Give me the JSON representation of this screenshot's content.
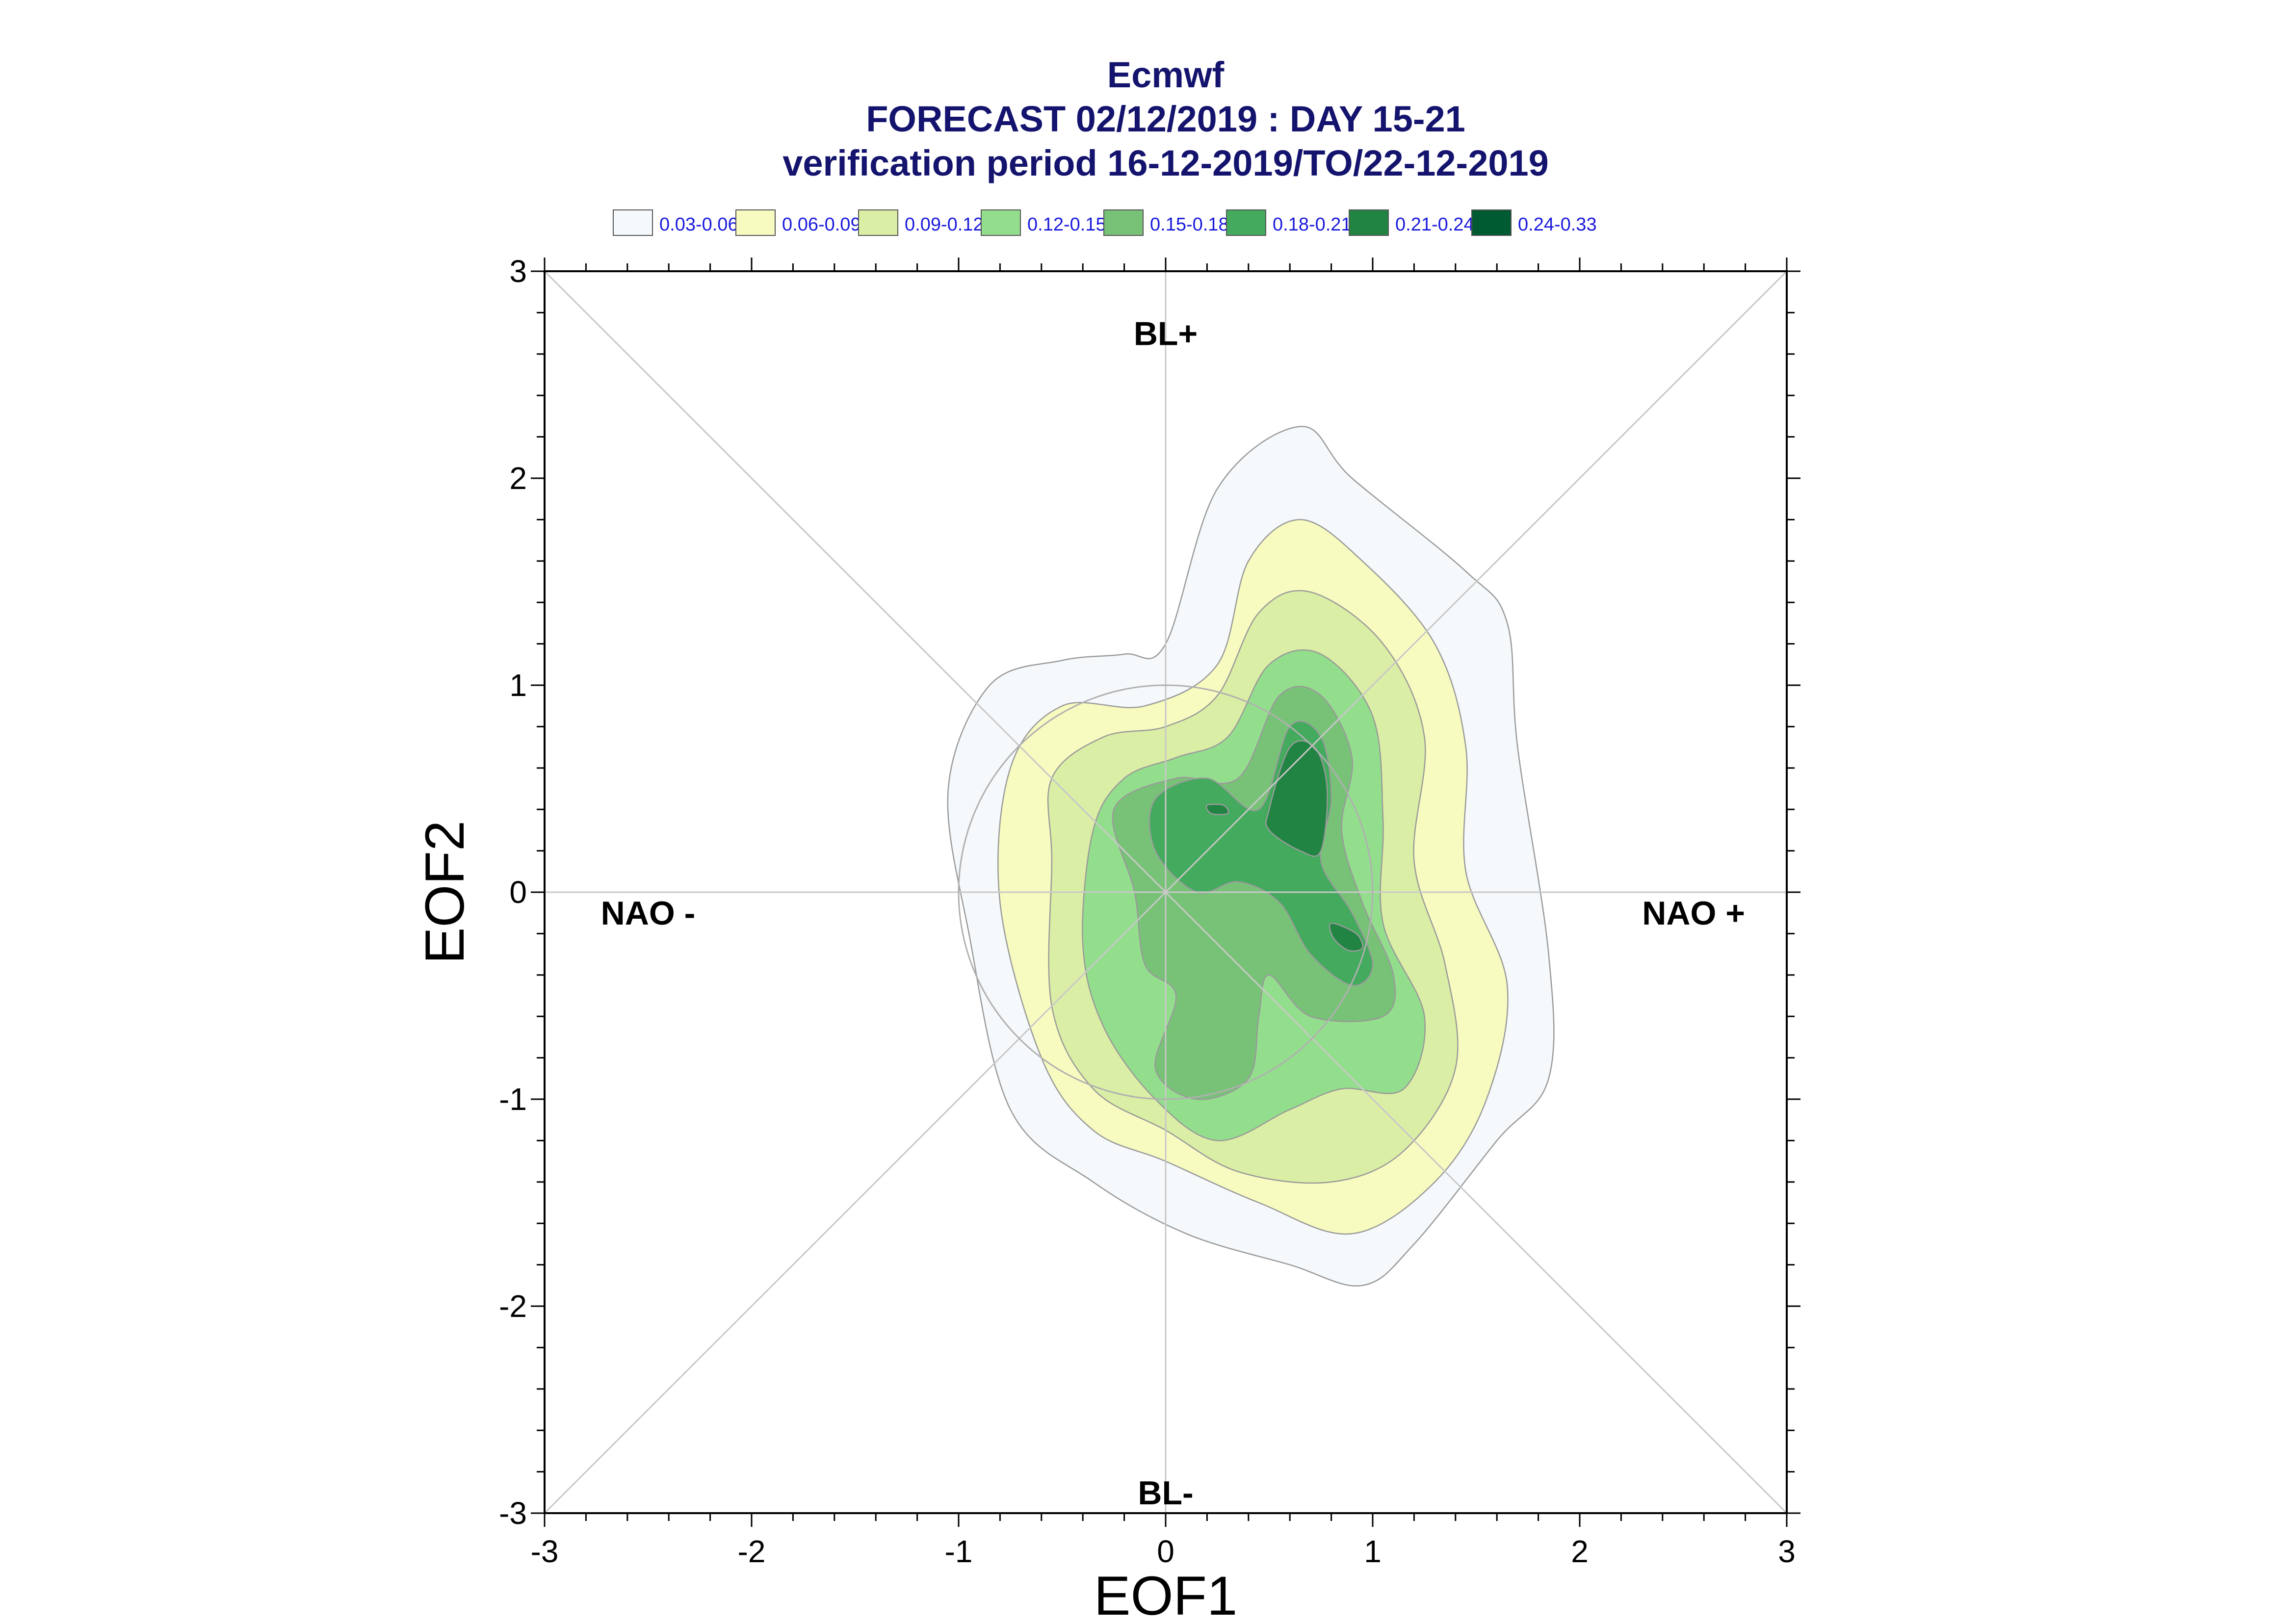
{
  "chart_data": {
    "type": "contour",
    "title_lines": [
      "Ecmwf",
      "FORECAST 02/12/2019 : DAY 15-21",
      "verification period 16-12-2019/TO/22-12-2019"
    ],
    "xlabel": "EOF1",
    "ylabel": "EOF2",
    "xlim": [
      -3,
      3
    ],
    "ylim": [
      -3,
      3
    ],
    "x_ticks": [
      "-3",
      "-2",
      "-1",
      "0",
      "1",
      "2",
      "3"
    ],
    "y_ticks": [
      "3",
      "2",
      "1",
      "0",
      "-1",
      "-2",
      "-3"
    ],
    "grid": false,
    "reference_lines": [
      "x=0",
      "y=0",
      "y=x",
      "y=-x",
      "circle r=1"
    ],
    "regime_labels": [
      {
        "text": "BL+",
        "x": 0,
        "y": 2.7
      },
      {
        "text": "BL-",
        "x": 0,
        "y": -2.9
      },
      {
        "text": "NAO -",
        "x": -2.5,
        "y": -0.1
      },
      {
        "text": "NAO +",
        "x": 2.55,
        "y": -0.1
      }
    ],
    "legend": {
      "placement": "top",
      "items": [
        {
          "label": "0.03-0.06",
          "color": "#f5f9fc"
        },
        {
          "label": "0.06-0.09",
          "color": "#f7fbbf"
        },
        {
          "label": "0.09-0.12",
          "color": "#dbeea5"
        },
        {
          "label": "0.12-0.15",
          "color": "#93de8d"
        },
        {
          "label": "0.15-0.18",
          "color": "#78c278"
        },
        {
          "label": "0.18-0.21",
          "color": "#43aa5e"
        },
        {
          "label": "0.21-0.24",
          "color": "#218443"
        },
        {
          "label": "0.24-0.33",
          "color": "#005a32"
        }
      ]
    },
    "contours": [
      {
        "level": "0.03-0.06",
        "points": [
          [
            0.0,
            1.2
          ],
          [
            0.25,
            1.95
          ],
          [
            0.65,
            2.25
          ],
          [
            0.9,
            2.0
          ],
          [
            1.45,
            1.55
          ],
          [
            1.65,
            1.3
          ],
          [
            1.7,
            0.7
          ],
          [
            1.85,
            -0.3
          ],
          [
            1.85,
            -0.9
          ],
          [
            1.6,
            -1.2
          ],
          [
            1.2,
            -1.7
          ],
          [
            0.95,
            -1.9
          ],
          [
            0.6,
            -1.8
          ],
          [
            0.1,
            -1.65
          ],
          [
            -0.35,
            -1.4
          ],
          [
            -0.75,
            -1.05
          ],
          [
            -0.95,
            -0.2
          ],
          [
            -1.05,
            0.5
          ],
          [
            -0.85,
            1.0
          ],
          [
            -0.5,
            1.12
          ],
          [
            -0.2,
            1.15
          ]
        ]
      },
      {
        "level": "0.06-0.09",
        "points": [
          [
            0.25,
            1.1
          ],
          [
            0.4,
            1.6
          ],
          [
            0.65,
            1.8
          ],
          [
            0.95,
            1.6
          ],
          [
            1.3,
            1.2
          ],
          [
            1.45,
            0.7
          ],
          [
            1.45,
            0.1
          ],
          [
            1.65,
            -0.45
          ],
          [
            1.55,
            -1.0
          ],
          [
            1.3,
            -1.4
          ],
          [
            0.9,
            -1.65
          ],
          [
            0.45,
            -1.5
          ],
          [
            0.0,
            -1.3
          ],
          [
            -0.35,
            -1.15
          ],
          [
            -0.6,
            -0.8
          ],
          [
            -0.8,
            -0.05
          ],
          [
            -0.75,
            0.6
          ],
          [
            -0.5,
            0.9
          ],
          [
            -0.1,
            0.9
          ]
        ]
      },
      {
        "level": "0.09-0.12",
        "points": [
          [
            0.25,
            0.95
          ],
          [
            0.45,
            1.35
          ],
          [
            0.7,
            1.45
          ],
          [
            1.05,
            1.2
          ],
          [
            1.25,
            0.75
          ],
          [
            1.2,
            0.15
          ],
          [
            1.35,
            -0.35
          ],
          [
            1.4,
            -0.85
          ],
          [
            1.15,
            -1.25
          ],
          [
            0.8,
            -1.4
          ],
          [
            0.35,
            -1.35
          ],
          [
            0.0,
            -1.15
          ],
          [
            -0.35,
            -0.95
          ],
          [
            -0.55,
            -0.55
          ],
          [
            -0.55,
            0.15
          ],
          [
            -0.55,
            0.55
          ],
          [
            -0.3,
            0.75
          ],
          [
            0.0,
            0.8
          ]
        ]
      },
      {
        "level": "0.12-0.15",
        "points": [
          [
            0.3,
            0.75
          ],
          [
            0.5,
            1.1
          ],
          [
            0.75,
            1.15
          ],
          [
            1.0,
            0.85
          ],
          [
            1.05,
            0.35
          ],
          [
            1.05,
            -0.15
          ],
          [
            1.25,
            -0.6
          ],
          [
            1.15,
            -0.95
          ],
          [
            0.85,
            -0.95
          ],
          [
            0.6,
            -1.05
          ],
          [
            0.25,
            -1.2
          ],
          [
            -0.05,
            -1.0
          ],
          [
            -0.3,
            -0.65
          ],
          [
            -0.4,
            -0.25
          ],
          [
            -0.35,
            0.3
          ],
          [
            -0.2,
            0.55
          ],
          [
            0.05,
            0.65
          ]
        ]
      },
      {
        "level": "0.15-0.18",
        "points": [
          [
            0.35,
            0.55
          ],
          [
            0.55,
            0.95
          ],
          [
            0.75,
            0.95
          ],
          [
            0.9,
            0.65
          ],
          [
            0.85,
            0.3
          ],
          [
            0.95,
            -0.05
          ],
          [
            1.1,
            -0.4
          ],
          [
            1.05,
            -0.6
          ],
          [
            0.7,
            -0.6
          ],
          [
            0.5,
            -0.4
          ],
          [
            0.45,
            -0.6
          ],
          [
            0.4,
            -0.9
          ],
          [
            0.15,
            -1.0
          ],
          [
            -0.05,
            -0.85
          ],
          [
            0.05,
            -0.5
          ],
          [
            -0.1,
            -0.35
          ],
          [
            -0.15,
            0.0
          ],
          [
            -0.25,
            0.4
          ],
          [
            0.05,
            0.55
          ]
        ]
      },
      {
        "level": "0.18-0.21",
        "points": [
          [
            0.45,
            0.4
          ],
          [
            0.6,
            0.8
          ],
          [
            0.75,
            0.75
          ],
          [
            0.8,
            0.45
          ],
          [
            0.75,
            0.15
          ],
          [
            0.9,
            -0.1
          ],
          [
            1.0,
            -0.35
          ],
          [
            0.9,
            -0.45
          ],
          [
            0.7,
            -0.3
          ],
          [
            0.55,
            -0.05
          ],
          [
            0.35,
            0.05
          ],
          [
            0.15,
            0.0
          ],
          [
            -0.05,
            0.2
          ],
          [
            -0.05,
            0.45
          ],
          [
            0.2,
            0.55
          ]
        ]
      },
      {
        "level": "0.21-0.24",
        "points": [
          [
            0.5,
            0.4
          ],
          [
            0.6,
            0.7
          ],
          [
            0.72,
            0.7
          ],
          [
            0.78,
            0.5
          ],
          [
            0.75,
            0.2
          ],
          [
            0.65,
            0.2
          ],
          [
            0.5,
            0.3
          ]
        ]
      },
      {
        "level": "0.21-0.24",
        "points": [
          [
            0.8,
            -0.15
          ],
          [
            0.92,
            -0.2
          ],
          [
            0.95,
            -0.27
          ],
          [
            0.88,
            -0.28
          ],
          [
            0.81,
            -0.22
          ]
        ]
      },
      {
        "level": "0.21-0.24",
        "points": [
          [
            0.2,
            0.42
          ],
          [
            0.28,
            0.42
          ],
          [
            0.3,
            0.38
          ],
          [
            0.22,
            0.38
          ]
        ]
      }
    ]
  }
}
